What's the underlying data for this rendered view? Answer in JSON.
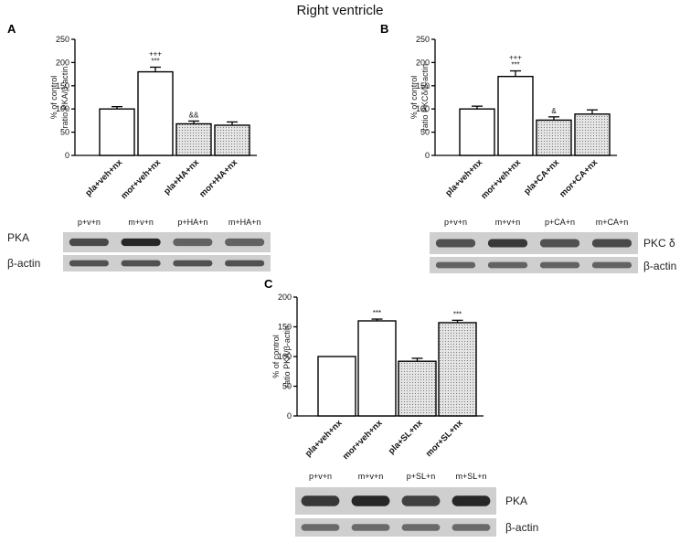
{
  "figure": {
    "title": "Right ventricle"
  },
  "chart_data": [
    {
      "panel": "A",
      "type": "bar",
      "title": "",
      "ylabel": "% of control ratio PKA/β-actin",
      "ylabel_lines": [
        "% of control",
        "ratio PKA/β-actin"
      ],
      "xlabel": "",
      "ylim": [
        0,
        250
      ],
      "yticks": [
        "0",
        "50",
        "100",
        "150",
        "200",
        "250"
      ],
      "categories": [
        "pla+veh+nx",
        "mor+veh+nx",
        "pla+HA+nx",
        "mor+HA+nx"
      ],
      "values": [
        100,
        180,
        68,
        65
      ],
      "errors": [
        5,
        10,
        6,
        7
      ],
      "fills": [
        "#ffffff",
        "#ffffff",
        "#d4d4d4",
        "#d4d4d4"
      ],
      "annotations": [
        [
          "",
          ""
        ],
        [
          "+++",
          "***"
        ],
        [
          "&&",
          ""
        ],
        [
          "",
          ""
        ]
      ],
      "blot": {
        "lanes": [
          "p+v+n",
          "m+v+n",
          "p+HA+n",
          "m+HA+n"
        ],
        "rows": [
          {
            "label": "PKA",
            "intensity": [
              0.75,
              0.95,
              0.6,
              0.6
            ]
          },
          {
            "label": "β-actin",
            "intensity": [
              0.7,
              0.7,
              0.7,
              0.7
            ]
          }
        ]
      }
    },
    {
      "panel": "B",
      "type": "bar",
      "title": "",
      "ylabel": "% of control ratio PKCδ/β-actin",
      "ylabel_lines": [
        "% of control",
        "ratio PKCδ/β-actin"
      ],
      "xlabel": "",
      "ylim": [
        0,
        250
      ],
      "yticks": [
        "0",
        "50",
        "100",
        "150",
        "200",
        "250"
      ],
      "categories": [
        "pla+veh+nx",
        "mor+veh+nx",
        "pla+CA+nx",
        "mor+CA+nx"
      ],
      "values": [
        100,
        170,
        76,
        89
      ],
      "errors": [
        6,
        12,
        7,
        9
      ],
      "fills": [
        "#ffffff",
        "#ffffff",
        "#d4d4d4",
        "#d4d4d4"
      ],
      "annotations": [
        [
          "",
          ""
        ],
        [
          "+++",
          "***"
        ],
        [
          "&",
          ""
        ],
        [
          "",
          ""
        ]
      ],
      "blot": {
        "lanes": [
          "p+v+n",
          "m+v+n",
          "p+CA+n",
          "m+CA+n"
        ],
        "rows": [
          {
            "label": "PKC δ",
            "intensity": [
              0.7,
              0.85,
              0.7,
              0.75
            ]
          },
          {
            "label": "β-actin",
            "intensity": [
              0.6,
              0.6,
              0.6,
              0.6
            ]
          }
        ]
      }
    },
    {
      "panel": "C",
      "type": "bar",
      "title": "",
      "ylabel": "% of control ratio PKA/β-actin",
      "ylabel_lines": [
        "% of control",
        "ratio PKA/β-actin"
      ],
      "xlabel": "",
      "ylim": [
        0,
        200
      ],
      "yticks": [
        "0",
        "50",
        "100",
        "150",
        "200"
      ],
      "categories": [
        "pla+veh+nx",
        "mor+veh+nx",
        "pla+SL+nx",
        "mor+SL+nx"
      ],
      "values": [
        100,
        160,
        92,
        157
      ],
      "errors": [
        0,
        3,
        5,
        4
      ],
      "fills": [
        "#ffffff",
        "#ffffff",
        "#d4d4d4",
        "#d4d4d4"
      ],
      "annotations": [
        [
          "",
          ""
        ],
        [
          "***",
          ""
        ],
        [
          "",
          ""
        ],
        [
          "***",
          ""
        ]
      ],
      "blot": {
        "lanes": [
          "p+v+n",
          "m+v+n",
          "p+SL+n",
          "m+SL+n"
        ],
        "rows": [
          {
            "label": "PKA",
            "intensity": [
              0.85,
              0.95,
              0.8,
              0.95
            ]
          },
          {
            "label": "β-actin",
            "intensity": [
              0.55,
              0.55,
              0.55,
              0.55
            ]
          }
        ]
      }
    }
  ]
}
